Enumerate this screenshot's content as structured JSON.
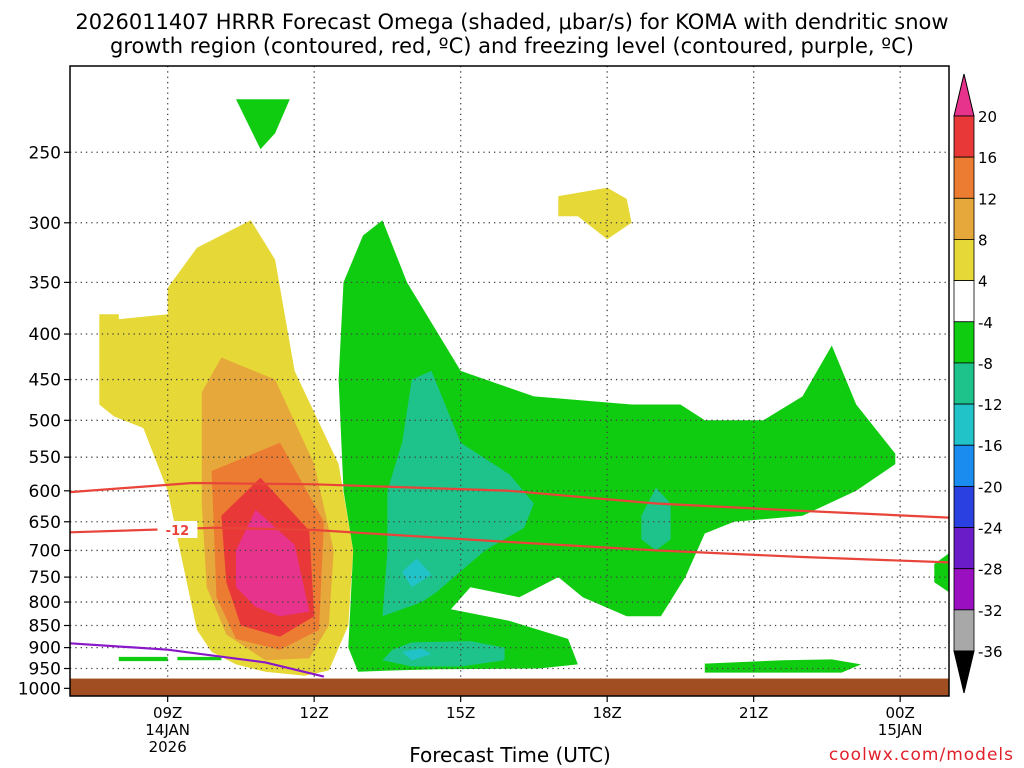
{
  "title_line1": "2026011407 HRRR Forecast Omega (shaded, μbar/s) for KOMA with dendritic snow",
  "title_line2": "growth region (contoured, red, ºC) and freezing level (contoured, purple, ºC)",
  "credit": "coolwx.com/models",
  "chart_data": {
    "type": "contour",
    "xlabel": "Forecast Time (UTC)",
    "ylabel": "",
    "y_scale": "log-pressure",
    "ylim": [
      1020,
      200
    ],
    "xlim_hours": [
      7.0,
      25.0
    ],
    "y_ticks": [
      250,
      300,
      350,
      400,
      450,
      500,
      550,
      600,
      650,
      700,
      750,
      800,
      850,
      900,
      950,
      1000
    ],
    "x_ticks": [
      {
        "hour": 9,
        "lines": [
          "09Z",
          "14JAN",
          "2026"
        ]
      },
      {
        "hour": 12,
        "lines": [
          "12Z"
        ]
      },
      {
        "hour": 15,
        "lines": [
          "15Z"
        ]
      },
      {
        "hour": 18,
        "lines": [
          "18Z"
        ]
      },
      {
        "hour": 21,
        "lines": [
          "21Z"
        ]
      },
      {
        "hour": 24,
        "lines": [
          "00Z",
          "15JAN"
        ]
      }
    ],
    "colorbar": {
      "labels": [
        20,
        16,
        12,
        8,
        4,
        -4,
        -8,
        -12,
        -16,
        -20,
        -24,
        -28,
        -32,
        -36
      ],
      "colors": [
        "#e8338c",
        "#e83838",
        "#ec7c32",
        "#e6a83a",
        "#e6d836",
        "#ffffff",
        "#10cc10",
        "#1ec38c",
        "#22c3c8",
        "#1a8cf0",
        "#2a40e0",
        "#6a1cc8",
        "#9a10c0",
        "#a8a8a8",
        "#000000"
      ],
      "extend": "both"
    },
    "ground_color": "#a04e22",
    "contours": [
      {
        "color": "red",
        "label": "",
        "points": [
          [
            7.0,
            602
          ],
          [
            9.5,
            588
          ],
          [
            12,
            590
          ],
          [
            16,
            600
          ],
          [
            19,
            620
          ],
          [
            22,
            632
          ],
          [
            25,
            643
          ]
        ]
      },
      {
        "color": "red",
        "label": "-12",
        "points": [
          [
            7.0,
            668
          ],
          [
            10,
            660
          ],
          [
            12,
            664
          ],
          [
            16,
            685
          ],
          [
            19,
            700
          ],
          [
            22,
            712
          ],
          [
            25,
            722
          ]
        ]
      },
      {
        "color": "purple",
        "label": "",
        "points": [
          [
            7.0,
            890
          ],
          [
            9,
            905
          ],
          [
            11,
            935
          ],
          [
            12.2,
            970
          ]
        ]
      }
    ],
    "omega_regions": [
      {
        "range": "4 to 8",
        "color": "#e6d836",
        "points": [
          [
            7.6,
            380
          ],
          [
            8.0,
            380
          ],
          [
            8.0,
            385
          ],
          [
            9.0,
            380
          ],
          [
            9.0,
            355
          ],
          [
            9.6,
            320
          ],
          [
            10.7,
            298
          ],
          [
            11.2,
            330
          ],
          [
            11.6,
            440
          ],
          [
            12.5,
            560
          ],
          [
            12.8,
            700
          ],
          [
            12.7,
            850
          ],
          [
            12.3,
            955
          ],
          [
            11.8,
            968
          ],
          [
            11,
            958
          ],
          [
            10.4,
            940
          ],
          [
            9.9,
            910
          ],
          [
            9.6,
            860
          ],
          [
            9.3,
            720
          ],
          [
            9.0,
            600
          ],
          [
            8.5,
            510
          ],
          [
            7.9,
            495
          ],
          [
            7.6,
            480
          ]
        ]
      },
      {
        "range": "8 to 12",
        "color": "#e6a83a",
        "points": [
          [
            9.7,
            465
          ],
          [
            10.1,
            425
          ],
          [
            11.2,
            450
          ],
          [
            12.0,
            560
          ],
          [
            12.4,
            700
          ],
          [
            12.3,
            850
          ],
          [
            11.9,
            925
          ],
          [
            11,
            930
          ],
          [
            10.2,
            870
          ],
          [
            9.8,
            770
          ],
          [
            9.7,
            620
          ]
        ]
      },
      {
        "range": "12 to 16",
        "color": "#ec7c32",
        "points": [
          [
            9.9,
            570
          ],
          [
            11.3,
            530
          ],
          [
            12.2,
            650
          ],
          [
            12.1,
            860
          ],
          [
            11.3,
            905
          ],
          [
            10.4,
            880
          ],
          [
            10.0,
            790
          ]
        ]
      },
      {
        "range": "16 to 20",
        "color": "#e83838",
        "points": [
          [
            10.1,
            640
          ],
          [
            10.9,
            580
          ],
          [
            11.9,
            665
          ],
          [
            12.0,
            830
          ],
          [
            11.3,
            875
          ],
          [
            10.5,
            850
          ],
          [
            10.2,
            760
          ]
        ]
      },
      {
        "range": "> 20",
        "color": "#e8338c",
        "points": [
          [
            10.4,
            700
          ],
          [
            10.8,
            630
          ],
          [
            11.6,
            690
          ],
          [
            11.9,
            820
          ],
          [
            11.3,
            830
          ],
          [
            10.8,
            810
          ],
          [
            10.4,
            770
          ]
        ]
      },
      {
        "range": "-4 to -8",
        "color": "#10cc10",
        "points": [
          [
            13.0,
            310
          ],
          [
            13.4,
            298
          ],
          [
            13.9,
            350
          ],
          [
            15.0,
            440
          ],
          [
            16.5,
            470
          ],
          [
            18.5,
            480
          ],
          [
            19.5,
            480
          ],
          [
            20.0,
            500
          ],
          [
            21.2,
            500
          ],
          [
            22.0,
            470
          ],
          [
            22.6,
            412
          ],
          [
            23.1,
            480
          ],
          [
            23.9,
            545
          ],
          [
            23.9,
            560
          ],
          [
            23.1,
            600
          ],
          [
            22.0,
            640
          ],
          [
            20.6,
            650
          ],
          [
            20.0,
            670
          ],
          [
            19.6,
            750
          ],
          [
            19.1,
            830
          ],
          [
            18.4,
            830
          ],
          [
            17.5,
            790
          ],
          [
            17.0,
            750
          ],
          [
            16.2,
            790
          ],
          [
            15.2,
            770
          ],
          [
            14.8,
            815
          ],
          [
            16.0,
            840
          ],
          [
            17.2,
            880
          ],
          [
            17.4,
            940
          ],
          [
            16.6,
            950
          ],
          [
            14.5,
            952
          ],
          [
            13.6,
            955
          ],
          [
            12.9,
            958
          ],
          [
            12.7,
            900
          ],
          [
            12.8,
            700
          ],
          [
            12.6,
            600
          ],
          [
            12.5,
            450
          ],
          [
            12.6,
            350
          ]
        ]
      },
      {
        "range": "-4 to -8",
        "color": "#10cc10",
        "points": [
          [
            10.4,
            218
          ],
          [
            11.5,
            218
          ],
          [
            11.2,
            238
          ],
          [
            10.9,
            248
          ]
        ]
      },
      {
        "range": "-4 to -8",
        "color": "#10cc10",
        "points": [
          [
            8.0,
            922
          ],
          [
            9.0,
            922
          ],
          [
            9.0,
            932
          ],
          [
            8.0,
            932
          ]
        ]
      },
      {
        "range": "-4 to -8",
        "color": "#10cc10",
        "points": [
          [
            9.2,
            922
          ],
          [
            10.1,
            922
          ],
          [
            10.1,
            930
          ],
          [
            9.2,
            930
          ]
        ]
      },
      {
        "range": "-4 to -8",
        "color": "#10cc10",
        "points": [
          [
            20.0,
            938
          ],
          [
            21.6,
            930
          ],
          [
            22.6,
            928
          ],
          [
            23.2,
            940
          ],
          [
            22.8,
            960
          ],
          [
            20.0,
            960
          ]
        ]
      },
      {
        "range": "-4 to -8",
        "color": "#10cc10",
        "points": [
          [
            24.7,
            725
          ],
          [
            25.0,
            705
          ],
          [
            25.0,
            780
          ],
          [
            24.7,
            760
          ]
        ]
      },
      {
        "range": "-8 to -12",
        "color": "#1ec38c",
        "points": [
          [
            14.0,
            450
          ],
          [
            14.4,
            440
          ],
          [
            15.0,
            530
          ],
          [
            16.0,
            575
          ],
          [
            16.5,
            620
          ],
          [
            16.3,
            660
          ],
          [
            15.5,
            700
          ],
          [
            14.5,
            780
          ],
          [
            14.2,
            800
          ],
          [
            13.4,
            830
          ],
          [
            13.5,
            700
          ],
          [
            13.5,
            600
          ],
          [
            13.8,
            530
          ]
        ]
      },
      {
        "range": "-8 to -12",
        "color": "#1ec38c",
        "points": [
          [
            13.6,
            905
          ],
          [
            14.0,
            888
          ],
          [
            15.2,
            885
          ],
          [
            15.9,
            900
          ],
          [
            15.9,
            930
          ],
          [
            15.0,
            945
          ],
          [
            14.0,
            945
          ],
          [
            13.4,
            930
          ]
        ]
      },
      {
        "range": "-8 to -12",
        "color": "#1ec38c",
        "points": [
          [
            18.7,
            640
          ],
          [
            19.0,
            595
          ],
          [
            19.3,
            620
          ],
          [
            19.3,
            680
          ],
          [
            19.0,
            700
          ],
          [
            18.7,
            680
          ]
        ]
      },
      {
        "range": "-12 to -16",
        "color": "#22c3c8",
        "points": [
          [
            13.8,
            740
          ],
          [
            14.1,
            715
          ],
          [
            14.4,
            745
          ],
          [
            14.0,
            770
          ]
        ]
      },
      {
        "range": "-12 to -16",
        "color": "#22c3c8",
        "points": [
          [
            13.8,
            910
          ],
          [
            14.2,
            902
          ],
          [
            14.4,
            915
          ],
          [
            14.0,
            930
          ]
        ]
      },
      {
        "range": "4 to 8",
        "color": "#e6d836",
        "points": [
          [
            17.0,
            280
          ],
          [
            18.0,
            274
          ],
          [
            18.4,
            282
          ],
          [
            18.5,
            300
          ],
          [
            18.0,
            313
          ],
          [
            17.4,
            295
          ],
          [
            17.0,
            295
          ]
        ]
      }
    ]
  }
}
